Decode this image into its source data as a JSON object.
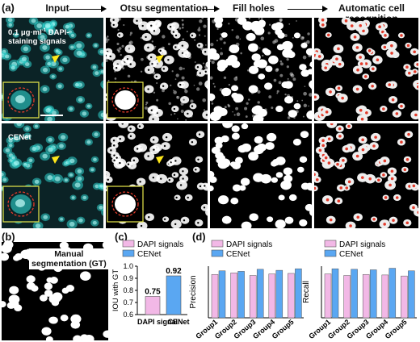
{
  "figure": {
    "panel_a_label": "(a)",
    "panel_b_label": "(b)",
    "panel_c_label": "(c)",
    "panel_d_label": "(d)",
    "headers": [
      "Input",
      "Otsu segmentation",
      "Fill holes",
      "Automatic cell recognition"
    ],
    "row1_label_line1": "0.1 μg·ml",
    "row1_label_sup": "-1",
    "row1_label_line1b": " DAPI-",
    "row1_label_line2": "staining signals",
    "row2_label": "CENet",
    "manual_line1": "Manual",
    "manual_line2": "segmentation (GT)",
    "colors": {
      "dapi": "#f2b8e6",
      "cenet": "#5aa7f2",
      "cyan": "#2fd6d0"
    }
  },
  "chart_data": [
    {
      "type": "bar",
      "categories": [
        "DAPI signal",
        "CENet"
      ],
      "values": [
        0.75,
        0.92
      ],
      "value_labels": [
        "0.75",
        "0.92"
      ],
      "ylabel": "IOU with GT",
      "ylim": [
        0.6,
        1.0
      ],
      "yticks": [
        "0.6",
        "0.7",
        "0.8",
        "0.9",
        "1.0"
      ],
      "legend": [
        "DAPI signals",
        "CENet"
      ]
    },
    {
      "type": "bar",
      "categories": [
        "Group1",
        "Group2",
        "Group3",
        "Group4",
        "Group5"
      ],
      "ylabel": "Precision",
      "ylim": [
        0,
        1.0
      ],
      "series": [
        {
          "name": "DAPI signals",
          "values": [
            0.84,
            0.87,
            0.82,
            0.85,
            0.86
          ]
        },
        {
          "name": "CENet",
          "values": [
            0.91,
            0.9,
            0.94,
            0.92,
            0.95
          ]
        }
      ]
    },
    {
      "type": "bar",
      "categories": [
        "Group1",
        "Group2",
        "Group3",
        "Group4",
        "Group5"
      ],
      "ylabel": "Recall",
      "ylim": [
        0,
        1.0
      ],
      "series": [
        {
          "name": "DAPI signals",
          "values": [
            0.85,
            0.82,
            0.84,
            0.83,
            0.81
          ]
        },
        {
          "name": "CENet",
          "values": [
            0.95,
            0.94,
            0.93,
            0.96,
            0.91
          ]
        }
      ]
    }
  ]
}
